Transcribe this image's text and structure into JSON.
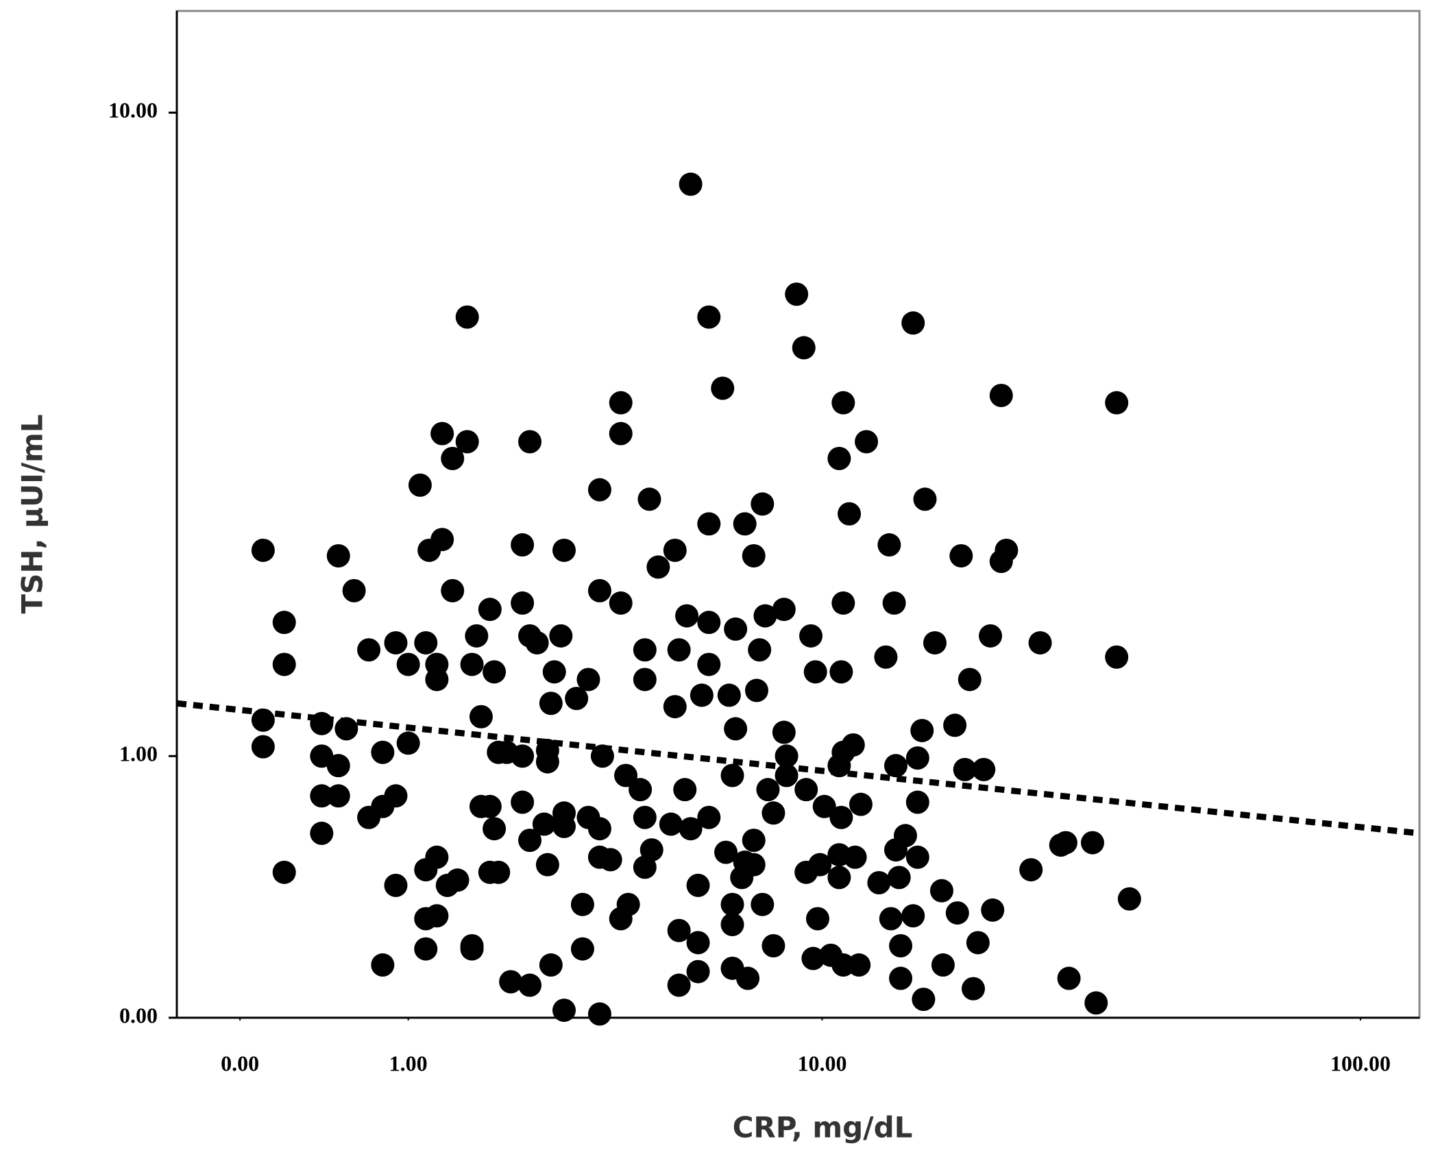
{
  "chart_data": {
    "type": "scatter",
    "x_label": "CRP, mg/dL",
    "y_label": "TSH, µUI/mL",
    "xscale": "log1p",
    "yscale": "log1p",
    "xlim": [
      -0.229,
      127.8
    ],
    "ylim": [
      0,
      13.4
    ],
    "xticks": [
      {
        "value": 0,
        "label": "0.00"
      },
      {
        "value": 1,
        "label": "1.00"
      },
      {
        "value": 10,
        "label": "10.00"
      },
      {
        "value": 100,
        "label": "100.00"
      }
    ],
    "yticks": [
      {
        "value": 0,
        "label": "0.00"
      },
      {
        "value": 1,
        "label": "1.00"
      },
      {
        "value": 10,
        "label": "10.00"
      }
    ],
    "color": "#000000",
    "x": [
      5.4,
      1.55,
      5.9,
      8.9,
      9.2,
      15,
      6.3,
      22,
      36,
      11,
      3.8,
      3.8,
      1.3,
      1.55,
      1.4,
      2.3,
      10.8,
      12.2,
      1.1,
      3.4,
      4.4,
      15.8,
      7.6,
      11.3,
      5.9,
      7.0,
      1.3,
      2.2,
      0.1,
      0.5,
      1.18,
      2.8,
      5.0,
      7.3,
      13.5,
      18.5,
      22.5,
      22,
      4.6,
      0.6,
      1.4,
      3.4,
      3.8,
      2.2,
      1.8,
      11,
      13.8,
      0.2,
      5.3,
      5.9,
      7.7,
      8.4,
      1.65,
      2.3,
      2.75,
      6.7,
      9.5,
      16.5,
      21,
      26,
      0.7,
      0.9,
      1.15,
      1.0,
      1.25,
      4.3,
      5.1,
      2.4,
      5.9,
      7.5,
      13.3,
      36,
      0.2,
      1.6,
      1.85,
      2.65,
      3.2,
      1.25,
      4.3,
      9.7,
      10.9,
      19.2,
      5.0,
      5.7,
      6.5,
      7.4,
      2.6,
      3.0,
      1.7,
      0.1,
      0.4,
      0.55,
      0.1,
      0.8,
      1.0,
      0.4,
      0.5,
      0.4,
      0.5,
      0.7,
      0.8,
      0.9,
      0.4,
      0.2,
      0.8,
      0.9,
      1.15,
      1.25,
      1.15,
      1.25,
      1.15,
      1.35,
      1.45,
      1.6,
      1.6,
      1.7,
      1.8,
      1.85,
      1.8,
      1.9,
      2.0,
      1.9,
      2.2,
      2.2,
      2.55,
      2.55,
      2.3,
      2.55,
      2.8,
      2.8,
      2.5,
      2.05,
      2.3,
      2.6,
      2.8,
      3.4,
      3.1,
      3.1,
      3.2,
      3.4,
      3.4,
      3.6,
      3.45,
      3.9,
      4.2,
      3.8,
      3.95,
      4.3,
      4.45,
      4.3,
      4.9,
      5.25,
      5.4,
      5.9,
      5.6,
      5.1,
      5.6,
      5.6,
      5.1,
      6.6,
      7.1,
      6.6,
      6.6,
      6.4,
      7.3,
      7.3,
      6.9,
      7.6,
      8.0,
      8.0,
      7.8,
      6.6,
      6.7,
      8.4,
      8.5,
      8.5,
      9.3,
      10.1,
      10.9,
      11.9,
      11,
      10.8,
      11.5,
      13.9,
      15.3,
      15.3,
      15.6,
      18,
      18.8,
      20.4,
      9.3,
      9.9,
      10.8,
      9.8,
      9.6,
      10.4,
      11.0,
      11.8,
      10.8,
      11.6,
      12.9,
      13.9,
      14.5,
      15.3,
      14.1,
      15,
      13.6,
      14.2,
      14.2,
      15.7,
      17.1,
      19.5,
      19.9,
      21.2,
      18.2,
      17,
      25,
      28.4,
      29,
      32.5,
      29.4,
      33,
      38,
      7.0
    ],
    "values": [
      8.1,
      5.4,
      5.4,
      5.8,
      4.9,
      5.3,
      4.3,
      4.2,
      4.1,
      4.1,
      4.1,
      3.7,
      3.7,
      3.6,
      3.4,
      3.6,
      3.4,
      3.6,
      3.1,
      3.05,
      2.95,
      2.95,
      2.9,
      2.8,
      2.7,
      2.7,
      2.55,
      2.5,
      2.45,
      2.4,
      2.45,
      2.45,
      2.45,
      2.4,
      2.5,
      2.4,
      2.45,
      2.35,
      2.3,
      2.1,
      2.1,
      2.1,
      2.0,
      2.0,
      1.95,
      2.0,
      2.0,
      1.85,
      1.9,
      1.85,
      1.9,
      1.95,
      1.75,
      1.75,
      1.75,
      1.8,
      1.75,
      1.7,
      1.75,
      1.7,
      1.65,
      1.7,
      1.7,
      1.55,
      1.55,
      1.65,
      1.65,
      1.7,
      1.55,
      1.65,
      1.6,
      1.6,
      1.55,
      1.55,
      1.5,
      1.5,
      1.45,
      1.45,
      1.45,
      1.5,
      1.5,
      1.45,
      1.28,
      1.35,
      1.35,
      1.38,
      1.3,
      1.33,
      1.22,
      1.2,
      1.18,
      1.15,
      1.05,
      1.02,
      1.07,
      1.0,
      0.95,
      0.8,
      0.8,
      0.7,
      0.75,
      0.8,
      0.63,
      0.47,
      0.15,
      0.42,
      0.48,
      0.53,
      0.3,
      0.31,
      0.2,
      0.42,
      0.44,
      0.21,
      0.2,
      0.75,
      0.75,
      0.65,
      0.47,
      0.47,
      1.02,
      1.02,
      1.0,
      0.77,
      1.03,
      0.97,
      0.6,
      0.5,
      0.72,
      0.66,
      0.67,
      0.1,
      0.09,
      0.15,
      0.02,
      0.01,
      0.35,
      0.2,
      0.7,
      0.65,
      0.53,
      0.52,
      1.0,
      0.9,
      0.83,
      0.3,
      0.35,
      0.49,
      0.56,
      0.7,
      0.67,
      0.83,
      0.65,
      0.7,
      0.42,
      0.26,
      0.22,
      0.13,
      0.09,
      0.14,
      0.11,
      0.28,
      0.35,
      0.55,
      0.6,
      0.5,
      0.45,
      0.35,
      0.21,
      0.72,
      0.83,
      0.9,
      1.15,
      1.13,
      1.0,
      0.9,
      0.83,
      0.75,
      0.7,
      0.76,
      1.02,
      0.95,
      1.06,
      0.95,
      0.99,
      0.77,
      1.14,
      1.17,
      0.93,
      0.93,
      0.47,
      0.5,
      0.45,
      0.3,
      0.17,
      0.18,
      0.15,
      0.15,
      0.54,
      0.53,
      0.43,
      0.56,
      0.62,
      0.53,
      0.45,
      0.31,
      0.3,
      0.21,
      0.11,
      0.05,
      0.15,
      0.08,
      0.22,
      0.33,
      0.32,
      0.4,
      0.48,
      0.58,
      0.59,
      0.59,
      0.11,
      0.04,
      0.37,
      0.51
    ],
    "trend_line": {
      "x": [
        -0.229,
        127.8
      ],
      "values": [
        1.3,
        0.63
      ]
    }
  }
}
